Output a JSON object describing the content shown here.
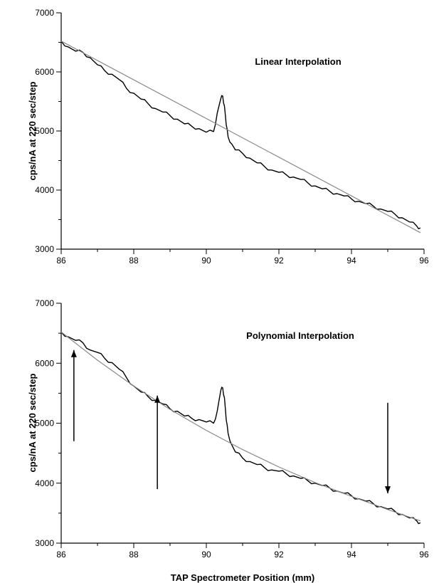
{
  "chart_data": [
    {
      "type": "line",
      "annotation": "Linear Interpolation",
      "ylabel": "cps/nA at 220 sec/step",
      "xlabel": "",
      "xlim": [
        86,
        96
      ],
      "ylim": [
        3000,
        7000
      ],
      "x_ticks": [
        "86",
        "88",
        "90",
        "92",
        "94",
        "96"
      ],
      "y_ticks": [
        "3000",
        "4000",
        "5000",
        "6000",
        "7000"
      ],
      "series": [
        {
          "style": "measured",
          "color": "#000000",
          "x": [
            86.0,
            86.2,
            86.4,
            86.6,
            86.8,
            87.0,
            87.2,
            87.4,
            87.6,
            87.8,
            88.0,
            88.2,
            88.4,
            88.6,
            88.8,
            89.0,
            89.2,
            89.4,
            89.6,
            89.8,
            90.0,
            90.2,
            90.3,
            90.4,
            90.45,
            90.5,
            90.55,
            90.6,
            90.7,
            90.8,
            91.0,
            91.2,
            91.4,
            91.6,
            91.8,
            92.0,
            92.2,
            92.4,
            92.6,
            92.8,
            93.0,
            93.2,
            93.4,
            93.6,
            93.8,
            94.0,
            94.2,
            94.4,
            94.6,
            94.8,
            95.0,
            95.2,
            95.4,
            95.6,
            95.8,
            95.9
          ],
          "y": [
            6520,
            6420,
            6350,
            6330,
            6240,
            6120,
            6020,
            5960,
            5870,
            5720,
            5640,
            5540,
            5460,
            5380,
            5320,
            5260,
            5200,
            5120,
            5080,
            5040,
            4980,
            4990,
            5300,
            5550,
            5590,
            5420,
            5100,
            4900,
            4780,
            4680,
            4620,
            4540,
            4460,
            4400,
            4340,
            4300,
            4260,
            4220,
            4180,
            4120,
            4070,
            4020,
            3980,
            3940,
            3900,
            3850,
            3810,
            3770,
            3730,
            3680,
            3640,
            3590,
            3530,
            3460,
            3390,
            3360
          ]
        },
        {
          "style": "fit",
          "color": "#888888",
          "x": [
            86.0,
            95.9
          ],
          "y": [
            6520,
            3280
          ]
        }
      ]
    },
    {
      "type": "line",
      "annotation": "Polynomial Interpolation",
      "ylabel": "cps/nA at 220 sec/step",
      "xlabel": "TAP Spectrometer Position (mm)",
      "xlim": [
        86,
        96
      ],
      "ylim": [
        3000,
        7000
      ],
      "x_ticks": [
        "86",
        "88",
        "90",
        "92",
        "94",
        "96"
      ],
      "y_ticks": [
        "3000",
        "4000",
        "5000",
        "6000",
        "7000"
      ],
      "series": [
        {
          "style": "measured",
          "color": "#000000",
          "x": [
            86.0,
            86.2,
            86.4,
            86.6,
            86.8,
            87.0,
            87.2,
            87.4,
            87.6,
            87.8,
            88.0,
            88.2,
            88.4,
            88.6,
            88.8,
            89.0,
            89.2,
            89.4,
            89.6,
            89.8,
            90.0,
            90.2,
            90.3,
            90.4,
            90.45,
            90.5,
            90.55,
            90.6,
            90.7,
            90.8,
            91.0,
            91.2,
            91.4,
            91.6,
            91.8,
            92.0,
            92.2,
            92.4,
            92.6,
            92.8,
            93.0,
            93.2,
            93.4,
            93.6,
            93.8,
            94.0,
            94.2,
            94.4,
            94.6,
            94.8,
            95.0,
            95.2,
            95.4,
            95.6,
            95.8,
            95.9
          ],
          "y": [
            6520,
            6440,
            6380,
            6340,
            6220,
            6180,
            6080,
            6010,
            5900,
            5760,
            5620,
            5520,
            5440,
            5380,
            5320,
            5240,
            5200,
            5120,
            5080,
            5060,
            5020,
            5000,
            5200,
            5550,
            5590,
            5420,
            5050,
            4830,
            4640,
            4520,
            4420,
            4360,
            4310,
            4260,
            4220,
            4200,
            4160,
            4120,
            4080,
            4040,
            4000,
            3960,
            3920,
            3870,
            3830,
            3790,
            3740,
            3700,
            3660,
            3610,
            3570,
            3530,
            3480,
            3420,
            3370,
            3340
          ]
        },
        {
          "style": "fit",
          "color": "#888888",
          "x": [
            86.0,
            87.0,
            88.0,
            89.0,
            90.0,
            91.0,
            92.0,
            93.0,
            94.0,
            95.0,
            95.9
          ],
          "y": [
            6520,
            6050,
            5620,
            5230,
            4880,
            4560,
            4270,
            4010,
            3780,
            3560,
            3370
          ]
        }
      ],
      "arrows": [
        {
          "x": 86.35,
          "y_from": 4700,
          "y_to": 6220
        },
        {
          "x": 88.65,
          "y_from": 3900,
          "y_to": 5460
        },
        {
          "x": 95.0,
          "y_from": 5340,
          "y_to": 3830
        }
      ]
    }
  ]
}
